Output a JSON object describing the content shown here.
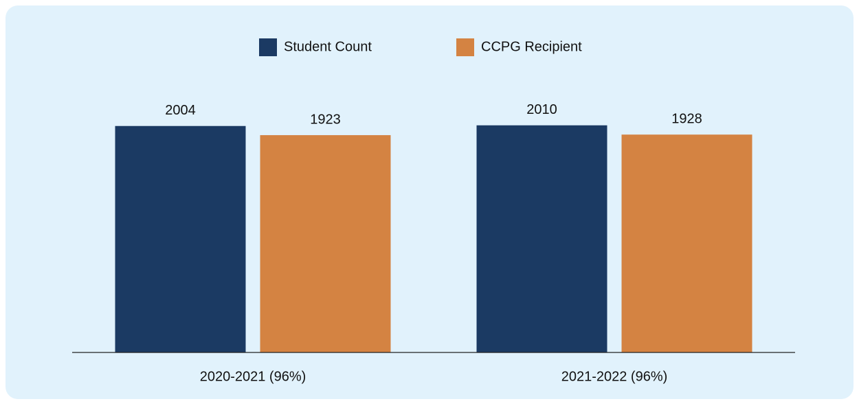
{
  "chart_data": {
    "type": "bar",
    "categories": [
      "2020-2021 (96%)",
      "2021-2022 (96%)"
    ],
    "series": [
      {
        "name": "Student Count",
        "color": "#1b3a63",
        "values": [
          2004,
          2010
        ]
      },
      {
        "name": "CCPG Recipient",
        "color": "#d48342",
        "values": [
          1923,
          1928
        ]
      }
    ],
    "ylim": [
      0,
      2500
    ]
  }
}
